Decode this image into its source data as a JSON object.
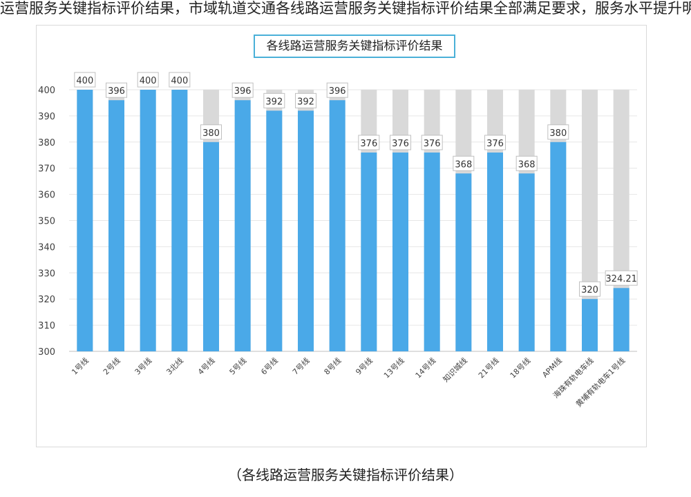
{
  "page": {
    "top_text": "运营服务关键指标评价结果，市域轨道交通各线路运营服务关键指标评价结果全部满足要求，服务水平提升明显，下同时对各线路运营服务关键指标进行了横向对比分析",
    "caption": "（各线路运营服务关键指标评价结果）"
  },
  "chart_data": {
    "type": "bar",
    "title": "各线路运营服务关键指标评价结果",
    "categories": [
      "1号线",
      "2号线",
      "3号线",
      "3北线",
      "4号线",
      "5号线",
      "6号线",
      "7号线",
      "8号线",
      "9号线",
      "13号线",
      "14号线",
      "知识城线",
      "21号线",
      "18号线",
      "APM线",
      "海珠有轨电车线",
      "黄埔有轨电车1号线"
    ],
    "series": [
      {
        "values": [
          400,
          396,
          400,
          400,
          380,
          396,
          392,
          392,
          396,
          376,
          376,
          376,
          368,
          376,
          368,
          380,
          320,
          324.21
        ]
      }
    ],
    "data_labels": [
      "400",
      "396",
      "400",
      "400",
      "380",
      "396",
      "392",
      "392",
      "396",
      "376",
      "376",
      "376",
      "368",
      "376",
      "368",
      "380",
      "320",
      "324.21"
    ],
    "max_value": 400,
    "ylim": [
      300,
      400
    ],
    "yticks": [
      400,
      390,
      380,
      370,
      360,
      350,
      340,
      330,
      320,
      310,
      300
    ],
    "xlabel": "",
    "ylabel": "",
    "grid": true,
    "legend": "none",
    "colors": {
      "bar": "#4aa9e8",
      "background_bar": "#d9d9d9",
      "grid": "#e6e6e6",
      "axis": "#bfbfbf",
      "label_box": "#bfbfbf"
    }
  }
}
